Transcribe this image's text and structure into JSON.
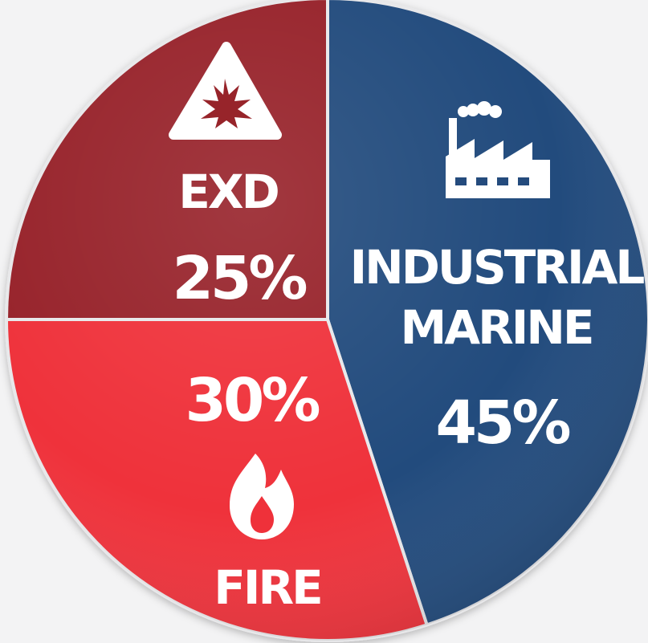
{
  "chart_data": {
    "type": "pie",
    "slices": [
      {
        "id": "industrial",
        "label_lines": [
          "INDUSTRIAL",
          "MARINE"
        ],
        "value": 45,
        "value_label": "45%",
        "color": "#244b7d",
        "icon": "factory-icon"
      },
      {
        "id": "fire",
        "label_lines": [
          "FIRE"
        ],
        "value": 30,
        "value_label": "30%",
        "color": "#ef313a",
        "icon": "flame-icon"
      },
      {
        "id": "exd",
        "label_lines": [
          "EXD"
        ],
        "value": 25,
        "value_label": "25%",
        "color": "#97242a",
        "icon": "explosion-warning-icon"
      }
    ],
    "start_angle_deg": 0,
    "direction": "clockwise",
    "legend": "none"
  }
}
